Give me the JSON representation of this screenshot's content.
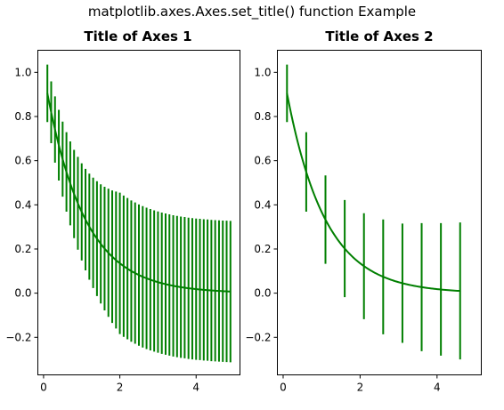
{
  "suptitle": "matplotlib.axes.Axes.set_title() function Example",
  "colors": {
    "series": "#007f00"
  },
  "chart_data": [
    {
      "type": "line",
      "title": "Title of Axes 1",
      "xlabel": "",
      "ylabel": "",
      "xlim": [
        -0.15,
        5.15
      ],
      "ylim": [
        -0.37,
        1.1
      ],
      "xticks": [
        0,
        2,
        4
      ],
      "xtick_labels": [
        "0",
        "2",
        "4"
      ],
      "yticks": [
        -0.2,
        0.0,
        0.2,
        0.4,
        0.6,
        0.8,
        1.0
      ],
      "ytick_labels": [
        "−0.2",
        "0.0",
        "0.2",
        "0.4",
        "0.6",
        "0.8",
        "1.0"
      ],
      "grid": false,
      "series": [
        {
          "style": "line with vertical error bars",
          "curve": "y = exp(-x)",
          "x": [
            0.1,
            0.2,
            0.3,
            0.4,
            0.5,
            0.6,
            0.7,
            0.8,
            0.9,
            1.0,
            1.1,
            1.2,
            1.3,
            1.4,
            1.5,
            1.6,
            1.7,
            1.8,
            1.9,
            2.0,
            2.1,
            2.2,
            2.3,
            2.4,
            2.5,
            2.6,
            2.7,
            2.8,
            2.9,
            3.0,
            3.1,
            3.2,
            3.3,
            3.4,
            3.5,
            3.6,
            3.7,
            3.8,
            3.9,
            4.0,
            4.1,
            4.2,
            4.3,
            4.4,
            4.5,
            4.6,
            4.7,
            4.8,
            4.9
          ],
          "y": [
            0.905,
            0.819,
            0.741,
            0.67,
            0.607,
            0.549,
            0.497,
            0.449,
            0.407,
            0.368,
            0.333,
            0.301,
            0.273,
            0.247,
            0.223,
            0.202,
            0.183,
            0.165,
            0.15,
            0.135,
            0.122,
            0.111,
            0.1,
            0.091,
            0.082,
            0.074,
            0.067,
            0.061,
            0.055,
            0.05,
            0.045,
            0.041,
            0.037,
            0.033,
            0.03,
            0.027,
            0.025,
            0.022,
            0.02,
            0.018,
            0.017,
            0.015,
            0.014,
            0.012,
            0.011,
            0.01,
            0.009,
            0.008,
            0.007
          ],
          "yerr": [
            0.13,
            0.14,
            0.15,
            0.16,
            0.17,
            0.18,
            0.19,
            0.2,
            0.21,
            0.22,
            0.23,
            0.24,
            0.25,
            0.26,
            0.27,
            0.28,
            0.29,
            0.3,
            0.31,
            0.32,
            0.32,
            0.32,
            0.32,
            0.32,
            0.32,
            0.32,
            0.32,
            0.32,
            0.32,
            0.32,
            0.32,
            0.32,
            0.32,
            0.32,
            0.32,
            0.32,
            0.32,
            0.32,
            0.32,
            0.32,
            0.32,
            0.32,
            0.32,
            0.32,
            0.32,
            0.32,
            0.32,
            0.32,
            0.32
          ]
        }
      ]
    },
    {
      "type": "line",
      "title": "Title of Axes 2",
      "xlabel": "",
      "ylabel": "",
      "xlim": [
        -0.15,
        5.15
      ],
      "ylim": [
        -0.37,
        1.1
      ],
      "xticks": [
        0,
        2,
        4
      ],
      "xtick_labels": [
        "0",
        "2",
        "4"
      ],
      "yticks": [
        -0.2,
        0.0,
        0.2,
        0.4,
        0.6,
        0.8,
        1.0
      ],
      "ytick_labels": [
        "−0.2",
        "0.0",
        "0.2",
        "0.4",
        "0.6",
        "0.8",
        "1.0"
      ],
      "grid": false,
      "series": [
        {
          "style": "smooth line with error bars every 5th point",
          "curve": "y = exp(-x)",
          "errorevery": 5,
          "x": [
            0.1,
            0.6,
            1.1,
            1.6,
            2.1,
            2.6,
            3.1,
            3.6,
            4.1,
            4.6
          ],
          "y": [
            0.905,
            0.549,
            0.333,
            0.202,
            0.122,
            0.074,
            0.045,
            0.027,
            0.017,
            0.01
          ],
          "yerr": [
            0.13,
            0.18,
            0.2,
            0.22,
            0.24,
            0.26,
            0.27,
            0.29,
            0.3,
            0.31
          ]
        }
      ]
    }
  ]
}
